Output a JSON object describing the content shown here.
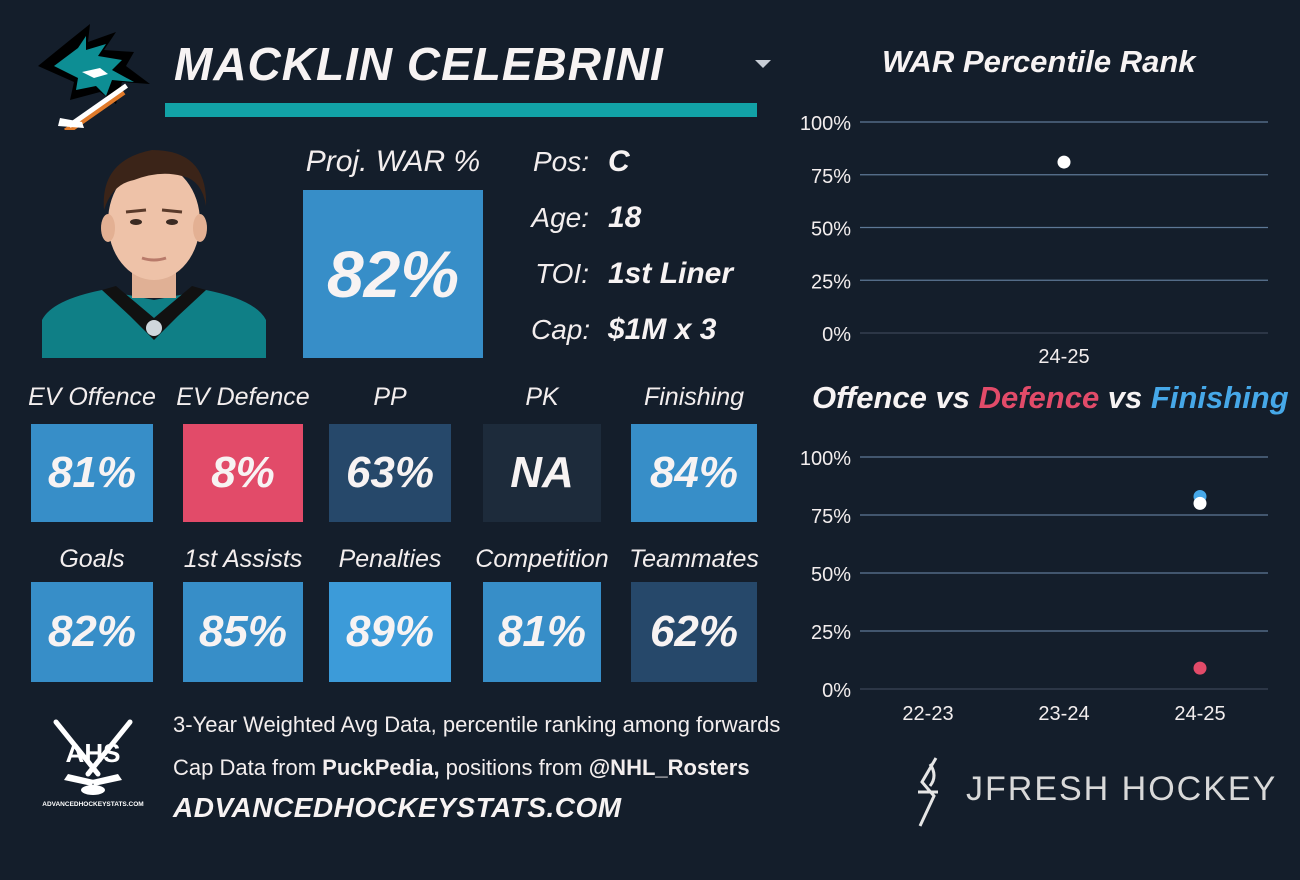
{
  "header": {
    "player_name": "MACKLIN CELEBRINI"
  },
  "proj_war": {
    "label": "Proj. WAR %",
    "value": "82%"
  },
  "info": [
    {
      "label": "Pos:",
      "value": "C"
    },
    {
      "label": "Age:",
      "value": "18"
    },
    {
      "label": "TOI:",
      "value": "1st Liner"
    },
    {
      "label": "Cap:",
      "value": "$1M x 3"
    }
  ],
  "stats_row1": [
    {
      "label": "EV Offence",
      "value": "81%",
      "color": "#378ec8"
    },
    {
      "label": "EV Defence",
      "value": "8%",
      "color": "#e24b69"
    },
    {
      "label": "PP",
      "value": "63%",
      "color": "#26486a"
    },
    {
      "label": "PK",
      "value": "NA",
      "color": "#1d2b3b"
    },
    {
      "label": "Finishing",
      "value": "84%",
      "color": "#378ec8"
    }
  ],
  "stats_row2": [
    {
      "label": "Goals",
      "value": "82%",
      "color": "#378ec8"
    },
    {
      "label": "1st Assists",
      "value": "85%",
      "color": "#378ec8"
    },
    {
      "label": "Penalties",
      "value": "89%",
      "color": "#3c9bd9"
    },
    {
      "label": "Competition",
      "value": "81%",
      "color": "#378ec8"
    },
    {
      "label": "Teammates",
      "value": "62%",
      "color": "#26486a"
    }
  ],
  "footer": {
    "line1": "3-Year Weighted Avg Data, percentile ranking among forwards",
    "line2_a": "Cap Data from ",
    "line2_b": "PuckPedia,",
    "line2_c": " positions from ",
    "line2_d": "@NHL_Rosters",
    "url": "ADVANCEDHOCKEYSTATS.COM",
    "ahs_logo_text": "AHS",
    "ahs_logo_sub": "ADVANCEDHOCKEYSTATS.COM",
    "brand": "JFRESH HOCKEY"
  },
  "colors": {
    "background": "#141e2b",
    "teal": "#12a2a6",
    "offence": "#ffffff",
    "defence": "#e24b69",
    "finishing": "#46a8e8"
  },
  "chart_data": [
    {
      "type": "scatter",
      "title": "WAR Percentile Rank",
      "categories": [
        "24-25"
      ],
      "ylim": [
        0,
        100
      ],
      "yticks": [
        "0%",
        "25%",
        "50%",
        "75%",
        "100%"
      ],
      "grid": true,
      "series": [
        {
          "values": [
            81
          ],
          "color": "#ffffff"
        }
      ]
    },
    {
      "type": "scatter",
      "title_parts": [
        {
          "text": "Offence",
          "color": "#f7f3f3"
        },
        {
          "text": " vs ",
          "color": "#f7f3f3"
        },
        {
          "text": "Defence",
          "color": "#e24b69"
        },
        {
          "text": " vs ",
          "color": "#f7f3f3"
        },
        {
          "text": "Finishing",
          "color": "#46a8e8"
        }
      ],
      "categories": [
        "22-23",
        "23-24",
        "24-25"
      ],
      "ylim": [
        0,
        100
      ],
      "yticks": [
        "0%",
        "25%",
        "50%",
        "75%",
        "100%"
      ],
      "grid": true,
      "series": [
        {
          "name": "Finishing",
          "values": [
            null,
            null,
            83
          ],
          "color": "#46a8e8"
        },
        {
          "name": "Offence",
          "values": [
            null,
            null,
            80
          ],
          "color": "#ffffff"
        },
        {
          "name": "Defence",
          "values": [
            null,
            null,
            9
          ],
          "color": "#e24b69"
        }
      ]
    }
  ]
}
